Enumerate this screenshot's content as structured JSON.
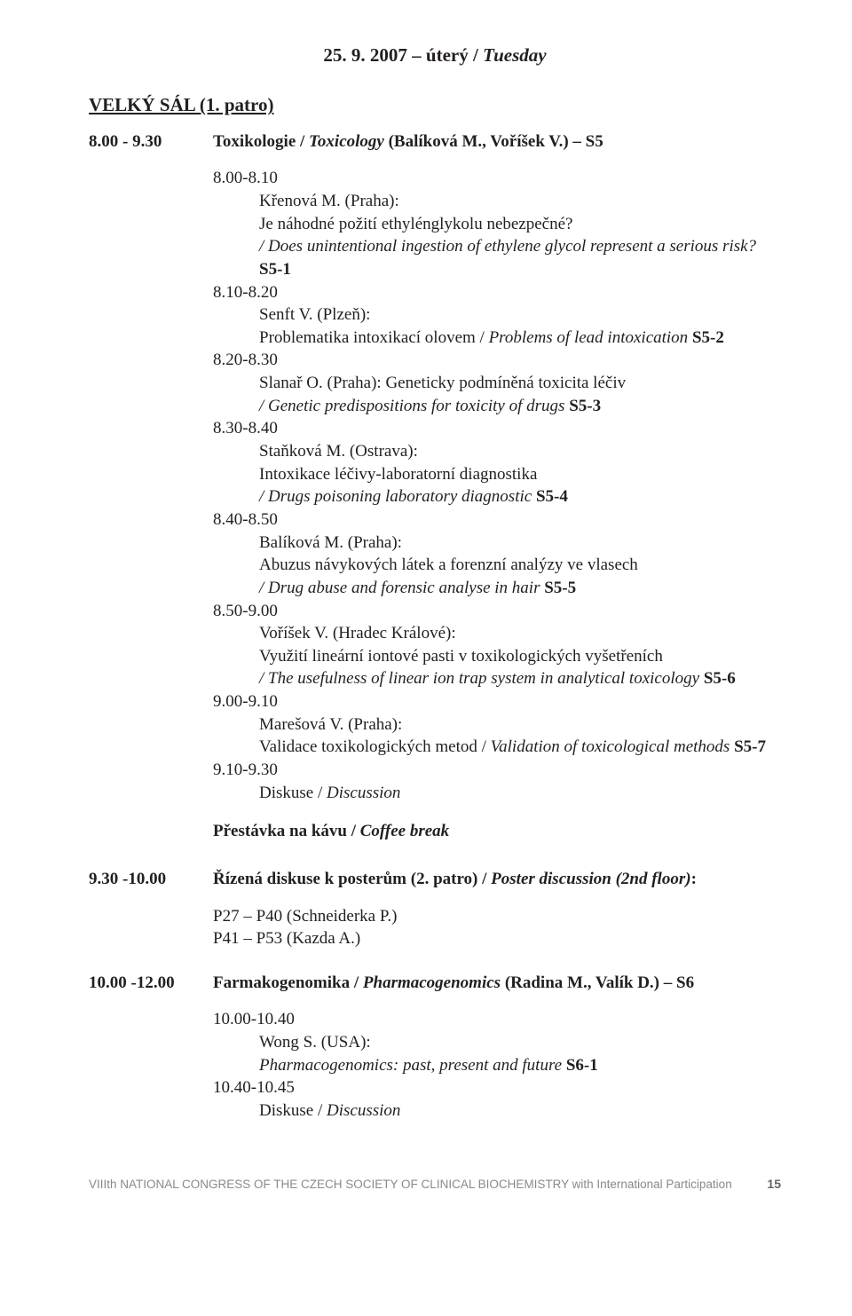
{
  "header": {
    "date": "25. 9. 2007 – úterý / ",
    "date_italic": "Tuesday"
  },
  "room": "VELKÝ SÁL (1. patro)",
  "session1": {
    "time": "8.00 - 9.30",
    "title_cz": "Toxikologie / ",
    "title_it": "Toxicology ",
    "title_rest": "(Balíková M., Voříšek V.) – S5",
    "talks": [
      {
        "time": "8.00-8.10",
        "author": "Křenová M. (Praha):",
        "cz": "Je náhodné požití ethylénglykolu nebezpečné?",
        "en": "/ Does unintentional ingestion of ethylene glycol represent a serious risk? ",
        "code": "S5-1"
      },
      {
        "time": "8.10-8.20",
        "author": "Senft V. (Plzeň):",
        "cz": "Problematika intoxikací olovem / ",
        "en": "Problems of lead intoxication ",
        "code": "S5-2",
        "inline": true
      },
      {
        "time": "8.20-8.30",
        "author": "Slanař O. (Praha): Geneticky podmíněná toxicita léčiv",
        "cz": "",
        "en": "/ Genetic predispositions for toxicity of drugs ",
        "code": "S5-3"
      },
      {
        "time": "8.30-8.40",
        "author": "Staňková M. (Ostrava):",
        "cz": "Intoxikace léčivy-laboratorní diagnostika",
        "en": "/ Drugs poisoning laboratory diagnostic ",
        "code": "S5-4"
      },
      {
        "time": "8.40-8.50",
        "author": "Balíková M. (Praha):",
        "cz": "Abuzus návykových látek a forenzní analýzy ve vlasech",
        "en": "/ Drug abuse and forensic analyse in hair ",
        "code": "S5-5"
      },
      {
        "time": "8.50-9.00",
        "author": "Voříšek V. (Hradec Králové):",
        "cz": "Využití lineární iontové pasti v toxikologických vyšetřeních",
        "en": "/ The usefulness of linear ion trap system in analytical toxicology ",
        "code": "S5-6"
      },
      {
        "time": "9.00-9.10",
        "author": "Marešová V. (Praha):",
        "cz": "Validace toxikologických metod / ",
        "en": "Validation of toxicological methods ",
        "code": "S5-7",
        "inline": true
      },
      {
        "time": "9.10-9.30",
        "author": "Diskuse / ",
        "author_it": "Discussion",
        "discussion": true
      }
    ]
  },
  "break": {
    "cz": "Přestávka na kávu / ",
    "en": "Coffee break"
  },
  "session2": {
    "time": "9.30 -10.00",
    "title_cz": "Řízená diskuse k posterům (2. patro) / ",
    "title_it": "Poster discussion (2nd floor)",
    "title_colon": ":",
    "posters": [
      "P27 – P40 (Schneiderka P.)",
      "P41 – P53 (Kazda A.)"
    ]
  },
  "session3": {
    "time": "10.00 -12.00",
    "title_cz": "Farmakogenomika / ",
    "title_it": "Pharmacogenomics ",
    "title_rest": "(Radina M., Valík D.) – S6",
    "talks": [
      {
        "time": "10.00-10.40",
        "author": "Wong S. (USA):",
        "cz": "",
        "en": "Pharmacogenomics: past, present and future ",
        "code": "S6-1"
      },
      {
        "time": "10.40-10.45",
        "author": "Diskuse / ",
        "author_it": "Discussion",
        "discussion": true
      }
    ]
  },
  "footer": {
    "text": "VIIIth NATIONAL CONGRESS OF THE CZECH SOCIETY OF CLINICAL BIOCHEMISTRY with International Participation",
    "page": "15"
  }
}
